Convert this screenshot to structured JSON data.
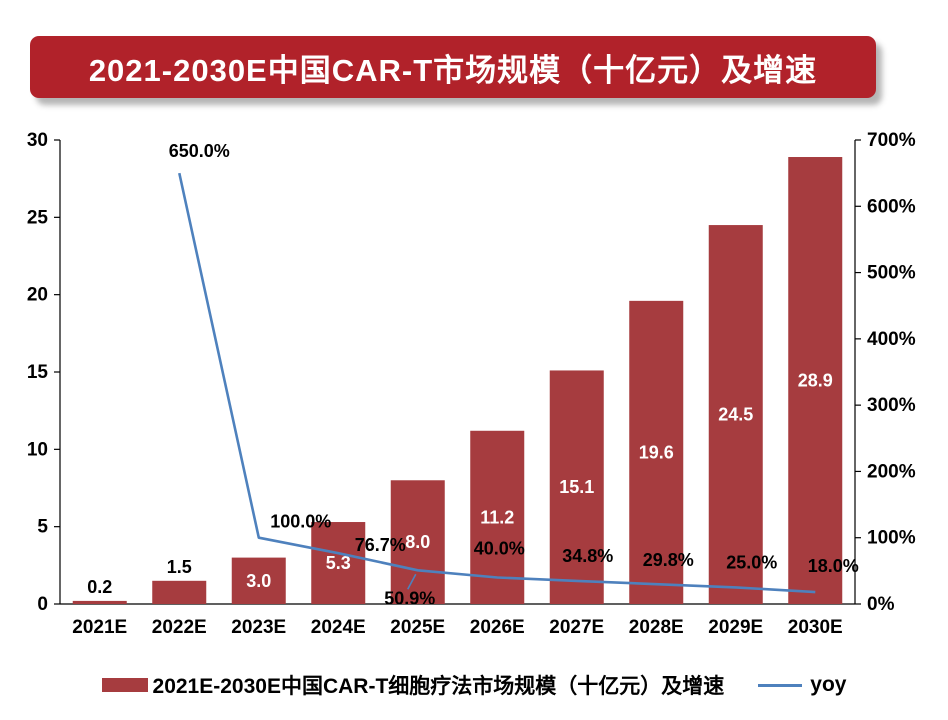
{
  "title": "2021-2030E中国CAR-T市场规模（十亿元）及增速",
  "colors": {
    "banner": "#b1222a",
    "bar": "#a63c3f",
    "line": "#4e81bd",
    "label_dark": "#000000",
    "label_light": "#ffffff",
    "axis": "#000000"
  },
  "chart_data": {
    "type": "bar",
    "subtype": "combo-bar-line",
    "grid": false,
    "legend_position": "bottom",
    "categories": [
      "2021E",
      "2022E",
      "2023E",
      "2024E",
      "2025E",
      "2026E",
      "2027E",
      "2028E",
      "2029E",
      "2030E"
    ],
    "series": [
      {
        "name": "2021E-2030E中国CAR-T细胞疗法市场规模（十亿元）及增速",
        "type": "bar",
        "axis": "left",
        "values": [
          0.2,
          1.5,
          3.0,
          5.3,
          8.0,
          11.2,
          15.1,
          19.6,
          24.5,
          28.9
        ],
        "labels": [
          "0.2",
          "1.5",
          "3.0",
          "5.3",
          "8.0",
          "11.2",
          "15.1",
          "19.6",
          "24.5",
          "28.9"
        ]
      },
      {
        "name": "yoy",
        "type": "line",
        "axis": "right",
        "points": [
          {
            "category": "2022E",
            "value": 650.0,
            "label": "650.0%",
            "dx": 20,
            "dy": -22
          },
          {
            "category": "2023E",
            "value": 100.0,
            "label": "100.0%",
            "dx": 42,
            "dy": -16
          },
          {
            "category": "2024E",
            "value": 76.7,
            "label": "76.7%",
            "dx": 42,
            "dy": -8
          },
          {
            "category": "2025E",
            "value": 50.9,
            "label": "50.9%",
            "dx": -8,
            "dy": 28,
            "leader": true
          },
          {
            "category": "2026E",
            "value": 40.0,
            "label": "40.0%",
            "dx": 2,
            "dy": -29
          },
          {
            "category": "2027E",
            "value": 34.8,
            "label": "34.8%",
            "dx": 11,
            "dy": -25
          },
          {
            "category": "2028E",
            "value": 29.8,
            "label": "29.8%",
            "dx": 12,
            "dy": -24
          },
          {
            "category": "2029E",
            "value": 25.0,
            "label": "25.0%",
            "dx": 16,
            "dy": -25
          },
          {
            "category": "2030E",
            "value": 18.0,
            "label": "18.0%",
            "dx": 18,
            "dy": -26
          }
        ]
      }
    ],
    "left_axis": {
      "min": 0,
      "max": 30,
      "step": 5,
      "ticks": [
        "30",
        "25",
        "20",
        "15",
        "10",
        "5",
        "0"
      ]
    },
    "right_axis": {
      "min": 0,
      "max": 700,
      "step": 100,
      "ticks": [
        "700%",
        "600%",
        "500%",
        "400%",
        "300%",
        "200%",
        "100%",
        "0%"
      ]
    },
    "legend": [
      {
        "swatch": "bar",
        "label": "2021E-2030E中国CAR-T细胞疗法市场规模（十亿元）及增速"
      },
      {
        "swatch": "line",
        "label": "yoy"
      }
    ]
  }
}
